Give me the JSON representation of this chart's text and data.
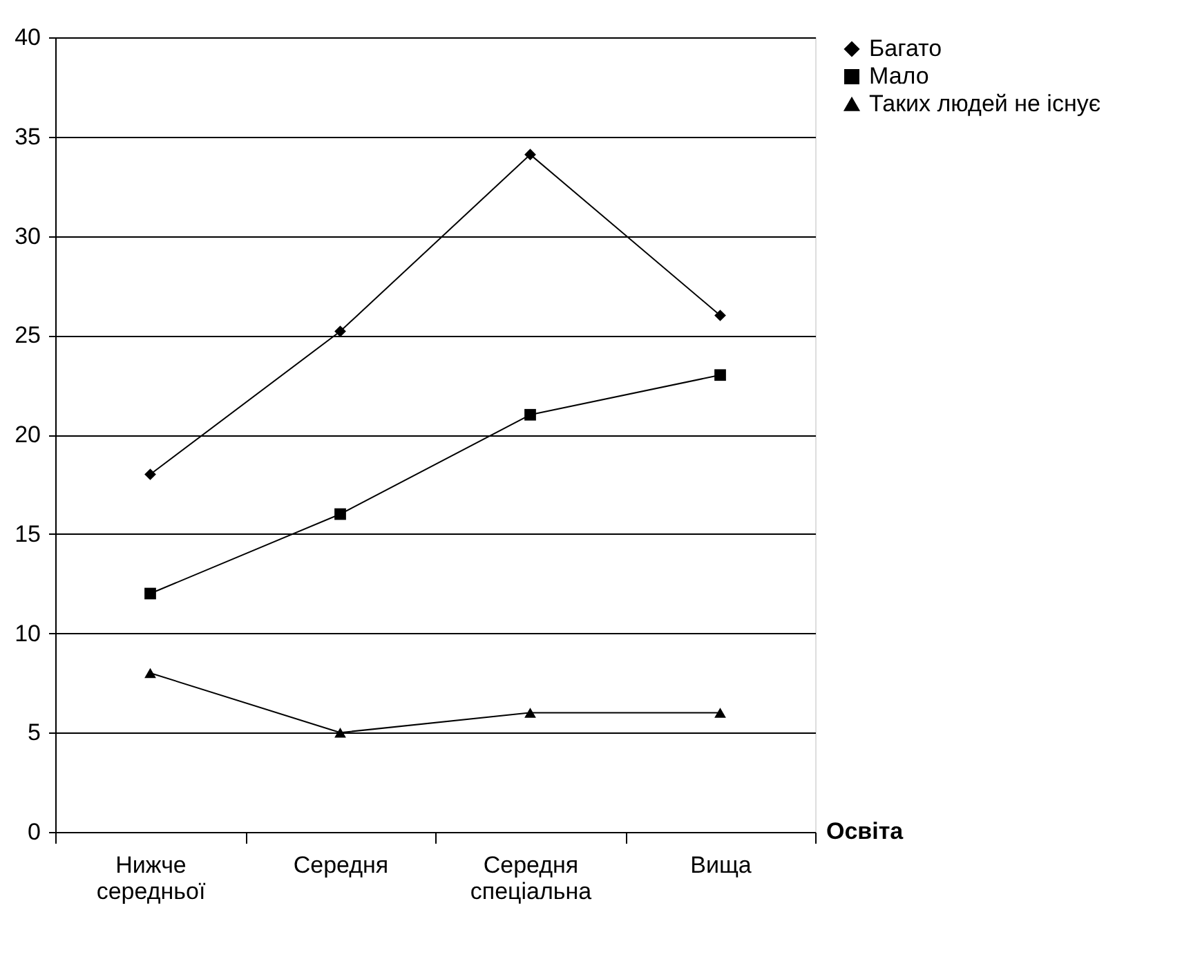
{
  "chart_data": {
    "type": "line",
    "xlabel": "Освіта",
    "categories": [
      "Нижче середньої",
      "Середня",
      "Середня спеціальна",
      "Вища"
    ],
    "series": [
      {
        "name": "Багато",
        "color": "#000000",
        "marker": "diamond",
        "values": [
          18,
          25.2,
          34.1,
          26
        ]
      },
      {
        "name": "Мало",
        "color": "#000000",
        "marker": "square",
        "values": [
          12,
          16,
          21,
          23
        ]
      },
      {
        "name": "Таких людей не існує",
        "color": "#000000",
        "marker": "triangle",
        "values": [
          8,
          5,
          6,
          6
        ]
      }
    ],
    "ylim": [
      0,
      40
    ],
    "yticks": [
      0,
      5,
      10,
      15,
      20,
      25,
      30,
      35,
      40
    ],
    "grid": "y",
    "legend": "right",
    "line_style": "solid"
  }
}
